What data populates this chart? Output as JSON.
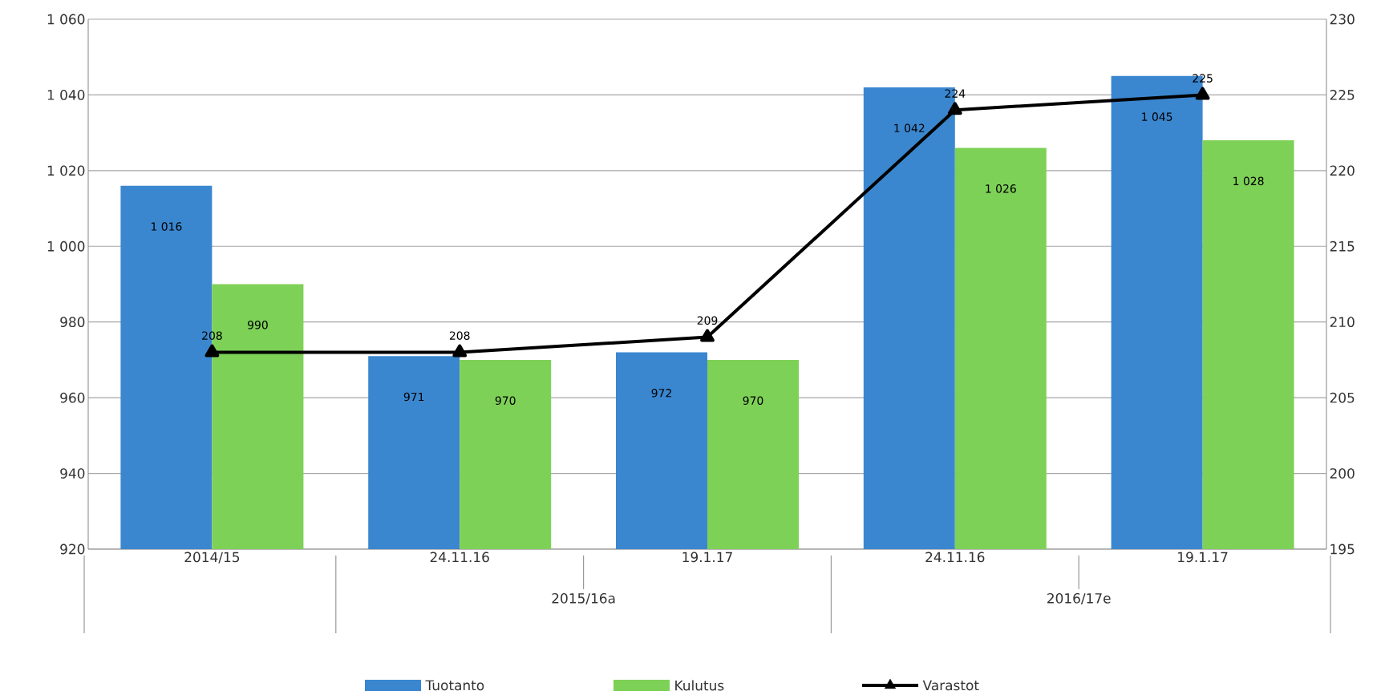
{
  "chart_data": {
    "type": "bar",
    "categories": [
      "2014/15",
      "24.11.16",
      "19.1.17",
      "24.11.16",
      "19.1.17"
    ],
    "series": [
      {
        "name": "Tuotanto",
        "color": "#3a87d0",
        "values": [
          1016,
          971,
          972,
          1042,
          1045
        ],
        "value_labels": [
          "1 016",
          "971",
          "972",
          "1 042",
          "1 045"
        ]
      },
      {
        "name": "Kulutus",
        "color": "#7ed157",
        "values": [
          990,
          970,
          970,
          1026,
          1028
        ],
        "value_labels": [
          "990",
          "970",
          "970",
          "1 026",
          "1 028"
        ]
      },
      {
        "name": "Varastot",
        "type": "line",
        "axis": "y2",
        "color": "#000000",
        "marker": "triangle",
        "values": [
          208,
          208,
          209,
          224,
          225
        ],
        "value_labels": [
          "208",
          "208",
          "209",
          "224",
          "225"
        ]
      }
    ],
    "ylim": [
      920,
      1060
    ],
    "yticks": [
      920,
      940,
      960,
      980,
      {
        "value": 1000,
        "label": "1 000"
      },
      {
        "value": 1020,
        "label": "1 020"
      },
      {
        "value": 1040,
        "label": "1 040"
      },
      {
        "value": 1060,
        "label": "1 060"
      }
    ],
    "y2lim": [
      195,
      230
    ],
    "y2ticks": [
      195,
      200,
      205,
      210,
      215,
      220,
      225,
      230
    ],
    "grid": "y",
    "legend": "bottom",
    "annotations": [
      "2015/16a",
      "2016/17e"
    ]
  }
}
